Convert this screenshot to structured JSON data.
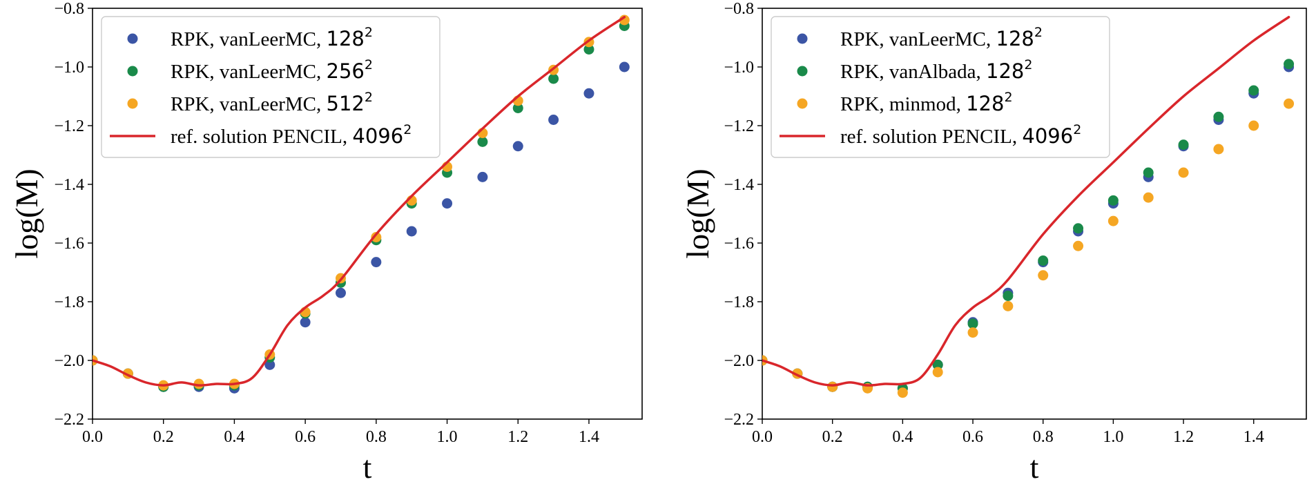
{
  "chart_data": [
    {
      "type": "scatter",
      "title": "",
      "xlabel": "t",
      "ylabel": "log(M)",
      "xlim": [
        0.0,
        1.55
      ],
      "ylim": [
        -2.2,
        -0.8
      ],
      "xticks": [
        "0.0",
        "0.2",
        "0.4",
        "0.6",
        "0.8",
        "1.0",
        "1.2",
        "1.4"
      ],
      "yticks": [
        "−0.8",
        "−1.0",
        "−1.2",
        "−1.4",
        "−1.6",
        "−1.8",
        "−2.0",
        "−2.2"
      ],
      "legend_position": "upper-left",
      "series": [
        {
          "name": "RPK, vanLeerMC, 128",
          "name_text": "RPK, vanLeerMC, ",
          "name_num": "128",
          "name_sup": "2",
          "color": "#3b55a5",
          "style": "marker",
          "x": [
            0.0,
            0.1,
            0.2,
            0.3,
            0.4,
            0.5,
            0.6,
            0.7,
            0.8,
            0.9,
            1.0,
            1.1,
            1.2,
            1.3,
            1.4,
            1.5
          ],
          "y": [
            -2.0,
            -2.045,
            -2.09,
            -2.09,
            -2.095,
            -2.015,
            -1.87,
            -1.77,
            -1.665,
            -1.56,
            -1.465,
            -1.375,
            -1.27,
            -1.18,
            -1.09,
            -1.0
          ]
        },
        {
          "name": "RPK, vanLeerMC, 256",
          "name_text": "RPK, vanLeerMC, ",
          "name_num": "256",
          "name_sup": "2",
          "color": "#1a8a4a",
          "style": "marker",
          "x": [
            0.0,
            0.1,
            0.2,
            0.3,
            0.4,
            0.5,
            0.6,
            0.7,
            0.8,
            0.9,
            1.0,
            1.1,
            1.2,
            1.3,
            1.4,
            1.5
          ],
          "y": [
            -2.0,
            -2.045,
            -2.09,
            -2.085,
            -2.085,
            -1.99,
            -1.84,
            -1.735,
            -1.59,
            -1.465,
            -1.36,
            -1.255,
            -1.14,
            -1.04,
            -0.94,
            -0.86
          ]
        },
        {
          "name": "RPK, vanLeerMC, 512",
          "name_text": "RPK, vanLeerMC, ",
          "name_num": "512",
          "name_sup": "2",
          "color": "#f5a623",
          "style": "marker",
          "x": [
            0.0,
            0.1,
            0.2,
            0.3,
            0.4,
            0.5,
            0.6,
            0.7,
            0.8,
            0.9,
            1.0,
            1.1,
            1.2,
            1.3,
            1.4,
            1.5
          ],
          "y": [
            -2.0,
            -2.045,
            -2.085,
            -2.08,
            -2.08,
            -1.98,
            -1.835,
            -1.72,
            -1.58,
            -1.455,
            -1.34,
            -1.225,
            -1.115,
            -1.01,
            -0.915,
            -0.84
          ]
        },
        {
          "name": "ref. solution PENCIL, 4096",
          "name_text": "ref. solution PENCIL, ",
          "name_num": "4096",
          "name_sup": "2",
          "color": "#d9262b",
          "style": "line",
          "x": [
            0.0,
            0.05,
            0.1,
            0.15,
            0.2,
            0.25,
            0.3,
            0.35,
            0.4,
            0.45,
            0.5,
            0.55,
            0.6,
            0.65,
            0.7,
            0.8,
            0.9,
            1.0,
            1.1,
            1.2,
            1.3,
            1.4,
            1.5
          ],
          "y": [
            -2.0,
            -2.02,
            -2.05,
            -2.075,
            -2.085,
            -2.075,
            -2.085,
            -2.08,
            -2.08,
            -2.06,
            -1.98,
            -1.88,
            -1.82,
            -1.78,
            -1.725,
            -1.57,
            -1.44,
            -1.325,
            -1.21,
            -1.1,
            -1.005,
            -0.91,
            -0.83
          ]
        }
      ]
    },
    {
      "type": "scatter",
      "title": "",
      "xlabel": "t",
      "ylabel": "log(M)",
      "xlim": [
        0.0,
        1.55
      ],
      "ylim": [
        -2.2,
        -0.8
      ],
      "xticks": [
        "0.0",
        "0.2",
        "0.4",
        "0.6",
        "0.8",
        "1.0",
        "1.2",
        "1.4"
      ],
      "yticks": [
        "−0.8",
        "−1.0",
        "−1.2",
        "−1.4",
        "−1.6",
        "−1.8",
        "−2.0",
        "−2.2"
      ],
      "legend_position": "upper-left",
      "series": [
        {
          "name": "RPK, vanLeerMC, 128",
          "name_text": "RPK, vanLeerMC, ",
          "name_num": "128",
          "name_sup": "2",
          "color": "#3b55a5",
          "style": "marker",
          "x": [
            0.0,
            0.1,
            0.2,
            0.3,
            0.4,
            0.5,
            0.6,
            0.7,
            0.8,
            0.9,
            1.0,
            1.1,
            1.2,
            1.3,
            1.4,
            1.5
          ],
          "y": [
            -2.0,
            -2.045,
            -2.09,
            -2.09,
            -2.095,
            -2.015,
            -1.87,
            -1.77,
            -1.665,
            -1.56,
            -1.465,
            -1.375,
            -1.27,
            -1.18,
            -1.09,
            -1.0
          ]
        },
        {
          "name": "RPK, vanAlbada, 128",
          "name_text": "RPK, vanAlbada, ",
          "name_num": "128",
          "name_sup": "2",
          "color": "#1a8a4a",
          "style": "marker",
          "x": [
            0.0,
            0.1,
            0.2,
            0.3,
            0.4,
            0.5,
            0.6,
            0.7,
            0.8,
            0.9,
            1.0,
            1.1,
            1.2,
            1.3,
            1.4,
            1.5
          ],
          "y": [
            -2.0,
            -2.045,
            -2.09,
            -2.09,
            -2.095,
            -2.015,
            -1.875,
            -1.78,
            -1.66,
            -1.55,
            -1.455,
            -1.36,
            -1.265,
            -1.17,
            -1.08,
            -0.99
          ]
        },
        {
          "name": "RPK, minmod, 128",
          "name_text": "RPK, minmod, ",
          "name_num": "128",
          "name_sup": "2",
          "color": "#f5a623",
          "style": "marker",
          "x": [
            0.0,
            0.1,
            0.2,
            0.3,
            0.4,
            0.5,
            0.6,
            0.7,
            0.8,
            0.9,
            1.0,
            1.1,
            1.2,
            1.3,
            1.4,
            1.5
          ],
          "y": [
            -2.0,
            -2.045,
            -2.09,
            -2.095,
            -2.11,
            -2.04,
            -1.905,
            -1.815,
            -1.71,
            -1.61,
            -1.525,
            -1.445,
            -1.36,
            -1.28,
            -1.2,
            -1.125
          ]
        },
        {
          "name": "ref. solution PENCIL, 4096",
          "name_text": "ref. solution PENCIL, ",
          "name_num": "4096",
          "name_sup": "2",
          "color": "#d9262b",
          "style": "line",
          "x": [
            0.0,
            0.05,
            0.1,
            0.15,
            0.2,
            0.25,
            0.3,
            0.35,
            0.4,
            0.45,
            0.5,
            0.55,
            0.6,
            0.65,
            0.7,
            0.8,
            0.9,
            1.0,
            1.1,
            1.2,
            1.3,
            1.4,
            1.5
          ],
          "y": [
            -2.0,
            -2.02,
            -2.05,
            -2.075,
            -2.085,
            -2.075,
            -2.085,
            -2.08,
            -2.08,
            -2.06,
            -1.98,
            -1.88,
            -1.82,
            -1.78,
            -1.725,
            -1.57,
            -1.44,
            -1.325,
            -1.21,
            -1.1,
            -1.005,
            -0.91,
            -0.83
          ]
        }
      ]
    }
  ]
}
